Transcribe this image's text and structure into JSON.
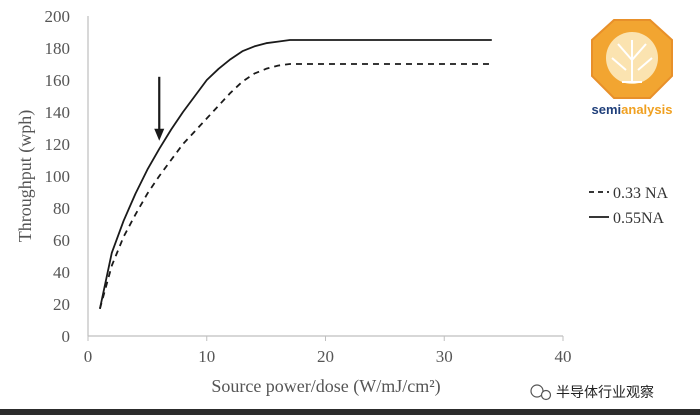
{
  "chart_data": {
    "type": "line",
    "xlabel": "Source power/dose (W/mJ/cm²)",
    "ylabel": "Throughput (wph)",
    "xlim": [
      0,
      40
    ],
    "ylim": [
      0,
      200
    ],
    "x_ticks": [
      "0",
      "10",
      "20",
      "30",
      "40"
    ],
    "y_ticks": [
      "0",
      "20",
      "40",
      "60",
      "80",
      "100",
      "120",
      "140",
      "160",
      "180",
      "200"
    ],
    "grid": false,
    "legend_position": "right",
    "series": [
      {
        "name": "0.33 NA",
        "style": "dashed",
        "color": "#1a1a1a",
        "x": [
          1,
          2,
          3,
          4,
          5,
          6,
          7,
          8,
          9,
          10,
          11,
          12,
          13,
          14,
          15,
          16,
          17,
          18,
          20,
          25,
          30,
          34
        ],
        "y": [
          17,
          44,
          62,
          76,
          89,
          100,
          110,
          120,
          128,
          136,
          144,
          152,
          159,
          164,
          167,
          169,
          170,
          170,
          170,
          170,
          170,
          170
        ]
      },
      {
        "name": "0.55NA",
        "style": "solid",
        "color": "#1a1a1a",
        "x": [
          1,
          2,
          3,
          4,
          5,
          6,
          7,
          8,
          9,
          10,
          11,
          12,
          13,
          14,
          15,
          16,
          17,
          18,
          20,
          25,
          30,
          34
        ],
        "y": [
          17,
          52,
          72,
          89,
          104,
          117,
          129,
          140,
          150,
          160,
          167,
          173,
          178,
          181,
          183,
          184,
          185,
          185,
          185,
          185,
          185,
          185
        ]
      }
    ],
    "annotations": [
      {
        "kind": "arrow",
        "x": 6,
        "y_from": 162,
        "y_to": 122
      }
    ]
  },
  "logo": {
    "text_part1": "semi",
    "text_part2": "analysis",
    "color_dark": "#1f3f7a",
    "color_accent": "#f0a020"
  },
  "watermark": {
    "text": "半导体行业观察"
  }
}
